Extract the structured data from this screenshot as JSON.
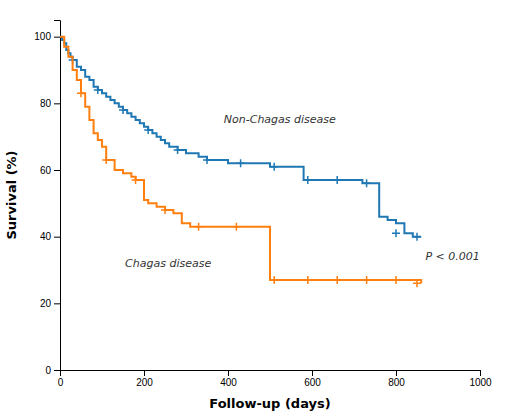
{
  "chart_data": {
    "type": "step",
    "xlabel": "Follow-up (days)",
    "ylabel": "Survival (%)",
    "xlim": [
      0,
      1000
    ],
    "ylim": [
      0,
      105
    ],
    "xticks": [
      0,
      200,
      400,
      600,
      800,
      1000
    ],
    "yticks": [
      0,
      20,
      40,
      60,
      80,
      100
    ],
    "grid": false,
    "annotations": [
      {
        "text": "Non-Chagas disease",
        "x": 390,
        "y": 74
      },
      {
        "text": "Chagas disease",
        "x": 155,
        "y": 31
      },
      {
        "text": "P < 0.001",
        "x": 870,
        "y": 33
      }
    ],
    "series": [
      {
        "marker": "plus",
        "x": [
          0,
          5,
          10,
          15,
          20,
          25,
          30,
          40,
          50,
          60,
          70,
          80,
          90,
          100,
          110,
          120,
          130,
          140,
          150,
          160,
          170,
          180,
          190,
          200,
          210,
          220,
          230,
          240,
          250,
          260,
          270,
          280,
          290,
          300,
          310,
          320,
          330,
          340,
          350,
          360,
          370,
          380,
          390,
          400,
          420,
          440,
          460,
          480,
          500,
          520,
          540,
          560,
          580,
          600,
          620,
          640,
          660,
          680,
          700,
          720,
          740,
          760,
          780,
          800,
          820,
          840,
          860
        ],
        "values": [
          100,
          99,
          98,
          96,
          95,
          94,
          93,
          91,
          90,
          88,
          87,
          85,
          84,
          83,
          82,
          81,
          80,
          79,
          78,
          77,
          76,
          75,
          74,
          73,
          72,
          71,
          70,
          69,
          68,
          67,
          67,
          66,
          66,
          65,
          65,
          65,
          64,
          64,
          63,
          63,
          63,
          63,
          63,
          62,
          62,
          62,
          62,
          62,
          61,
          61,
          61,
          61,
          57,
          57,
          57,
          57,
          57,
          57,
          57,
          56,
          56,
          46,
          45,
          44,
          41,
          40,
          40
        ],
        "censor_x": [
          30,
          90,
          150,
          210,
          280,
          350,
          430,
          510,
          590,
          660,
          730,
          800,
          850
        ],
        "censor_y": [
          93,
          84,
          78,
          72,
          66,
          63,
          62,
          61,
          57,
          57,
          56,
          41,
          40
        ]
      },
      {
        "marker": "plus",
        "x": [
          0,
          10,
          20,
          30,
          40,
          50,
          60,
          70,
          80,
          90,
          100,
          110,
          120,
          130,
          140,
          150,
          160,
          170,
          180,
          190,
          200,
          210,
          220,
          230,
          240,
          250,
          260,
          270,
          280,
          290,
          300,
          310,
          320,
          330,
          340,
          350,
          360,
          370,
          380,
          390,
          400,
          420,
          440,
          460,
          480,
          500,
          520,
          540,
          560,
          580,
          600,
          620,
          640,
          660,
          680,
          700,
          720,
          740,
          760,
          780,
          800,
          820,
          840,
          860
        ],
        "values": [
          100,
          97,
          94,
          90,
          87,
          83,
          79,
          75,
          71,
          69,
          67,
          63,
          63,
          60,
          60,
          59,
          59,
          58,
          57,
          57,
          51,
          50,
          50,
          49,
          49,
          48,
          48,
          47,
          47,
          44,
          44,
          43,
          43,
          43,
          43,
          43,
          43,
          43,
          43,
          43,
          43,
          43,
          43,
          43,
          43,
          27,
          27,
          27,
          27,
          27,
          27,
          27,
          27,
          27,
          27,
          27,
          27,
          27,
          27,
          27,
          27,
          27,
          27,
          26
        ],
        "censor_x": [
          50,
          110,
          180,
          250,
          330,
          420,
          510,
          590,
          660,
          730,
          800,
          850
        ],
        "censor_y": [
          83,
          63,
          57,
          48,
          43,
          43,
          27,
          27,
          27,
          27,
          27,
          26
        ]
      }
    ]
  }
}
